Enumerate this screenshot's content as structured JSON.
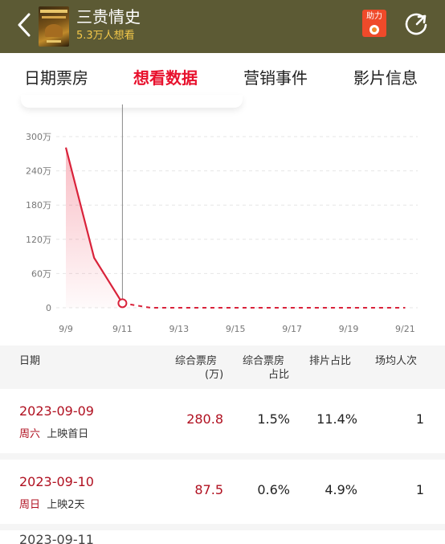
{
  "header": {
    "title": "三贵情史",
    "subtitle": "5.3万人想看",
    "help_label": "助力"
  },
  "tabs": [
    {
      "label": "日期票房"
    },
    {
      "label": "想看数据"
    },
    {
      "label": "营销事件"
    },
    {
      "label": "影片信息"
    }
  ],
  "chart_data": {
    "type": "line",
    "categories": [
      "9/9",
      "9/10",
      "9/11",
      "9/12",
      "9/13",
      "9/14",
      "9/15",
      "9/16",
      "9/17",
      "9/18",
      "9/19",
      "9/20",
      "9/21"
    ],
    "x_tick_labels": [
      "9/9",
      "9/11",
      "9/13",
      "9/15",
      "9/17",
      "9/19",
      "9/21"
    ],
    "y_tick_labels": [
      "0",
      "60万",
      "120万",
      "180万",
      "240万",
      "300万"
    ],
    "ylim": [
      0,
      300
    ],
    "series": [
      {
        "values": [
          280.8,
          87.5,
          8,
          0,
          0,
          0,
          0,
          0,
          0,
          0,
          0,
          0,
          0
        ]
      }
    ],
    "highlight_index": 2,
    "color": "#d9223a",
    "grid": true
  },
  "table": {
    "headers": [
      "日期",
      "综合票房(万)",
      "综合票房占比",
      "排片占比",
      "场均人次"
    ],
    "header_lines": {
      "date": "日期",
      "box1": "综合票房",
      "box2": "(万)",
      "share1": "综合票房",
      "share2": "占比",
      "screen": "排片占比",
      "avg": "场均人次"
    },
    "rows": [
      {
        "date": "2023-09-09",
        "weekday": "周六",
        "note": "上映首日",
        "box": "280.8",
        "box_share": "1.5%",
        "screen_share": "11.4%",
        "avg": "1"
      },
      {
        "date": "2023-09-10",
        "weekday": "周日",
        "note": "上映2天",
        "box": "87.5",
        "box_share": "0.6%",
        "screen_share": "4.9%",
        "avg": "1"
      }
    ],
    "partial_row_date": "2023-09-11"
  }
}
